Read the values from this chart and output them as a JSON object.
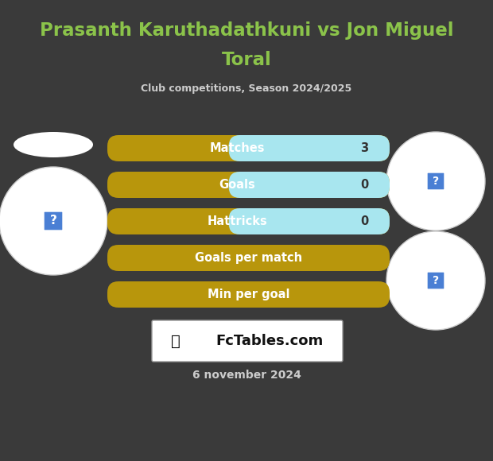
{
  "title_line1": "Prasanth Karuthadathkuni vs Jon Miguel",
  "title_line2": "Toral",
  "subtitle": "Club competitions, Season 2024/2025",
  "rows": [
    {
      "label": "Matches",
      "value": "3",
      "has_value": true
    },
    {
      "label": "Goals",
      "value": "0",
      "has_value": true
    },
    {
      "label": "Hattricks",
      "value": "0",
      "has_value": true
    },
    {
      "label": "Goals per match",
      "value": "",
      "has_value": false
    },
    {
      "label": "Min per goal",
      "value": "",
      "has_value": false
    }
  ],
  "bar_gold_color": "#B8960C",
  "bar_cyan_color": "#A8E6EF",
  "bg_color": "#3a3a3a",
  "title_color": "#8BC34A",
  "subtitle_color": "#cccccc",
  "label_color": "#ffffff",
  "value_color": "#444444",
  "date_text": "6 november 2024",
  "date_color": "#cccccc",
  "watermark_text": "FcTables.com",
  "logo_box_color": "#ffffff",
  "player_circle_color": "#ffffff",
  "question_box_color": "#4a7fd4"
}
